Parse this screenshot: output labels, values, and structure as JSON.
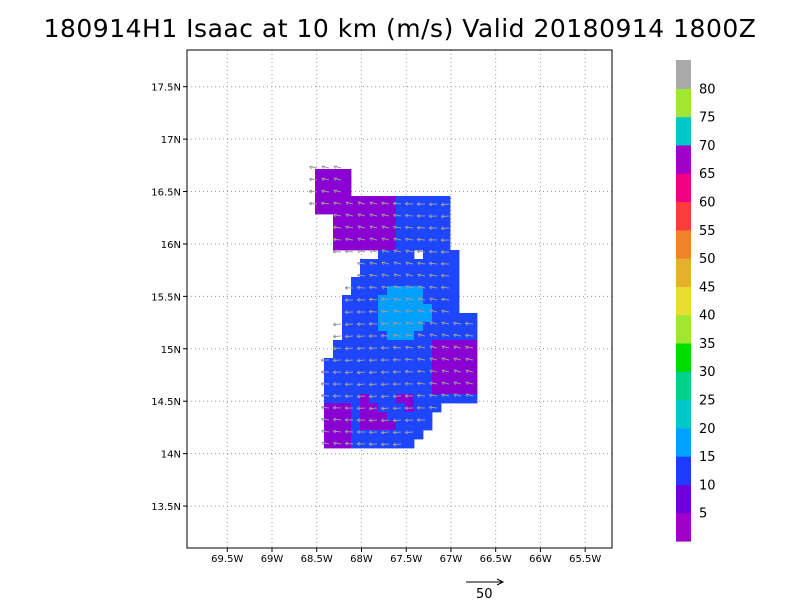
{
  "title": "180914H1 Isaac at 10 km (m/s) Valid 20180914 1800Z",
  "map": {
    "lon_range": [
      -69.95,
      -65.2
    ],
    "lat_range": [
      13.1,
      17.85
    ],
    "x_ticks": [
      {
        "value": -69.5,
        "label": "69.5W"
      },
      {
        "value": -69,
        "label": "69W"
      },
      {
        "value": -68.5,
        "label": "68.5W"
      },
      {
        "value": -68,
        "label": "68W"
      },
      {
        "value": -67.5,
        "label": "67.5W"
      },
      {
        "value": -67,
        "label": "67W"
      },
      {
        "value": -66.5,
        "label": "66.5W"
      },
      {
        "value": -66,
        "label": "66W"
      },
      {
        "value": -65.5,
        "label": "65.5W"
      }
    ],
    "y_ticks": [
      {
        "value": 13.5,
        "label": "13.5N"
      },
      {
        "value": 14,
        "label": "14N"
      },
      {
        "value": 14.5,
        "label": "14.5N"
      },
      {
        "value": 15,
        "label": "15N"
      },
      {
        "value": 15.5,
        "label": "15.5N"
      },
      {
        "value": 16,
        "label": "16N"
      },
      {
        "value": 16.5,
        "label": "16.5N"
      },
      {
        "value": 17,
        "label": "17N"
      },
      {
        "value": 17.5,
        "label": "17.5N"
      }
    ],
    "grid": true
  },
  "colorbar": {
    "levels": [
      "5",
      "10",
      "15",
      "20",
      "25",
      "30",
      "35",
      "40",
      "45",
      "50",
      "55",
      "60",
      "65",
      "70",
      "75",
      "80"
    ],
    "colors": [
      "#a000c8",
      "#6e00dc",
      "#1e3cff",
      "#00a0ff",
      "#00c8c8",
      "#00d28c",
      "#00dc00",
      "#a0e632",
      "#e6dc32",
      "#e6af2d",
      "#f08228",
      "#fa3c3c",
      "#f00082",
      "#a000c8",
      "#00c8c8",
      "#a0e632",
      "#aaaaaa"
    ]
  },
  "vector_scale": {
    "label": "50"
  }
}
